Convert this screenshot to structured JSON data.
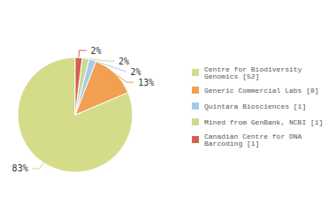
{
  "chart_data": {
    "type": "pie",
    "categories": [
      "Centre for Biodiversity\nGenomics [52]",
      "Generic Commercial Labs [8]",
      "Quintara Biosciences [1]",
      "Mined from GenBank, NCBI [1]",
      "Canadian Centre for DNA\nBarcoding [1]"
    ],
    "values": [
      83,
      13,
      2,
      2,
      2
    ],
    "value_labels": [
      "83%",
      "13%",
      "2%",
      "2%",
      "2%"
    ],
    "colors": [
      "#d4dc8a",
      "#f0a050",
      "#a8c8e8",
      "#c8dc90",
      "#d46050"
    ],
    "data_labels": true,
    "legend": "right"
  }
}
